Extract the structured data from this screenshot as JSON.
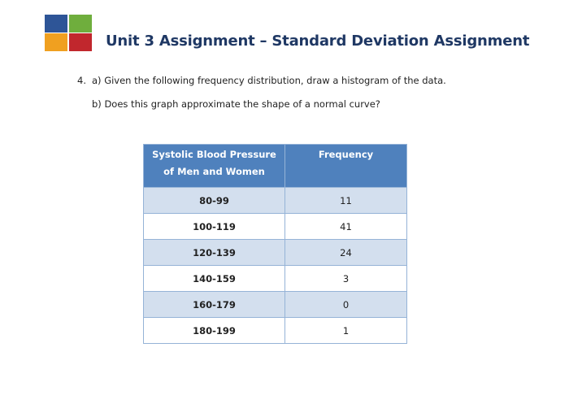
{
  "header": {
    "title": "Unit 3 Assignment – Standard Deviation Assignment"
  },
  "questions": {
    "number": "4.",
    "a": "a) Given the following frequency distribution, draw a histogram of the data.",
    "b": "b) Does this graph approximate the shape of a normal curve?"
  },
  "table": {
    "columns": [
      "Systolic Blood Pressure of Men and Women",
      "Frequency"
    ],
    "rows": [
      [
        "80-99",
        11
      ],
      [
        "100-119",
        41
      ],
      [
        "120-139",
        24
      ],
      [
        "140-159",
        3
      ],
      [
        "160-179",
        0
      ],
      [
        "180-199",
        1
      ]
    ]
  }
}
